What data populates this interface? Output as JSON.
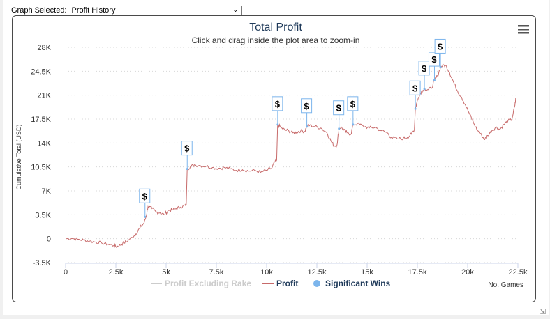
{
  "selector": {
    "label": "Graph Selected:",
    "value": "Profit History"
  },
  "chart_data": {
    "type": "line",
    "title": "Total Profit",
    "subtitle": "Click and drag inside the plot area to zoom-in",
    "xlabel": "No. Games",
    "ylabel": "Cumulative Total (USD)",
    "xlim": [
      0,
      22500
    ],
    "ylim": [
      -3500,
      28000
    ],
    "x_ticks": [
      0,
      2500,
      5000,
      7500,
      10000,
      12500,
      15000,
      17500,
      20000,
      22500
    ],
    "x_tick_labels": [
      "0",
      "2.5k",
      "5k",
      "7.5k",
      "10k",
      "12.5k",
      "15k",
      "17.5k",
      "20k",
      "22.5k"
    ],
    "y_ticks": [
      -3500,
      0,
      3500,
      7000,
      10500,
      14000,
      17500,
      21000,
      24500,
      28000
    ],
    "y_tick_labels": [
      "-3.5K",
      "0",
      "3.5K",
      "7K",
      "10.5K",
      "14K",
      "17.5K",
      "21K",
      "24.5K",
      "28K"
    ],
    "grid": true,
    "legend_position": "bottom-center",
    "legend": [
      {
        "label": "Profit Excluding Rake",
        "color": "#cccccc",
        "marker": "line"
      },
      {
        "label": "Profit",
        "color": "#c76a6a",
        "marker": "line"
      },
      {
        "label": "Significant Wins",
        "color": "#7cb5ec",
        "marker": "circle"
      }
    ],
    "series": [
      {
        "name": "Profit",
        "color": "#c76a6a",
        "points": [
          [
            0,
            0
          ],
          [
            300,
            50
          ],
          [
            600,
            -100
          ],
          [
            900,
            -200
          ],
          [
            1200,
            -350
          ],
          [
            1500,
            -500
          ],
          [
            1800,
            -650
          ],
          [
            2100,
            -800
          ],
          [
            2400,
            -1000
          ],
          [
            2550,
            -1150
          ],
          [
            2700,
            -950
          ],
          [
            2900,
            -600
          ],
          [
            3100,
            -300
          ],
          [
            3300,
            200
          ],
          [
            3500,
            700
          ],
          [
            3700,
            1600
          ],
          [
            3900,
            2300
          ],
          [
            4000,
            3200
          ],
          [
            4100,
            4700
          ],
          [
            4300,
            4400
          ],
          [
            4500,
            3900
          ],
          [
            4700,
            3800
          ],
          [
            4900,
            3500
          ],
          [
            5100,
            4100
          ],
          [
            5300,
            4200
          ],
          [
            5500,
            4400
          ],
          [
            5700,
            4600
          ],
          [
            5950,
            4900
          ],
          [
            6000,
            4900
          ],
          [
            6050,
            10200
          ],
          [
            6200,
            10500
          ],
          [
            6400,
            10800
          ],
          [
            6700,
            10700
          ],
          [
            7000,
            10600
          ],
          [
            7300,
            10400
          ],
          [
            7600,
            10300
          ],
          [
            7900,
            10400
          ],
          [
            8200,
            10200
          ],
          [
            8500,
            10000
          ],
          [
            8800,
            10100
          ],
          [
            9100,
            9900
          ],
          [
            9400,
            10000
          ],
          [
            9700,
            9700
          ],
          [
            10000,
            10000
          ],
          [
            10250,
            10300
          ],
          [
            10400,
            11200
          ],
          [
            10500,
            11500
          ],
          [
            10550,
            16700
          ],
          [
            10700,
            16300
          ],
          [
            10900,
            15900
          ],
          [
            11100,
            15800
          ],
          [
            11300,
            15500
          ],
          [
            11500,
            15600
          ],
          [
            11700,
            15800
          ],
          [
            11900,
            15700
          ],
          [
            12000,
            16400
          ],
          [
            12150,
            16600
          ],
          [
            12400,
            16400
          ],
          [
            12700,
            16200
          ],
          [
            13000,
            15500
          ],
          [
            13200,
            14300
          ],
          [
            13350,
            13600
          ],
          [
            13500,
            13700
          ],
          [
            13600,
            16100
          ],
          [
            13700,
            16300
          ],
          [
            13850,
            15900
          ],
          [
            14000,
            15500
          ],
          [
            14200,
            15300
          ],
          [
            14300,
            16700
          ],
          [
            14500,
            16800
          ],
          [
            14800,
            16500
          ],
          [
            15100,
            16200
          ],
          [
            15400,
            16300
          ],
          [
            15700,
            15800
          ],
          [
            16000,
            15500
          ],
          [
            16200,
            14800
          ],
          [
            16500,
            14600
          ],
          [
            16800,
            14700
          ],
          [
            17000,
            14800
          ],
          [
            17200,
            15300
          ],
          [
            17350,
            16000
          ],
          [
            17400,
            19000
          ],
          [
            17500,
            20300
          ],
          [
            17600,
            20900
          ],
          [
            17700,
            21500
          ],
          [
            17850,
            21900
          ],
          [
            18000,
            21800
          ],
          [
            18200,
            22000
          ],
          [
            18350,
            23200
          ],
          [
            18500,
            23800
          ],
          [
            18650,
            25100
          ],
          [
            18800,
            25400
          ],
          [
            18950,
            25200
          ],
          [
            19100,
            24300
          ],
          [
            19300,
            22900
          ],
          [
            19500,
            21600
          ],
          [
            19700,
            20700
          ],
          [
            19900,
            19500
          ],
          [
            20100,
            18200
          ],
          [
            20300,
            16900
          ],
          [
            20500,
            15800
          ],
          [
            20700,
            15100
          ],
          [
            20850,
            14500
          ],
          [
            21000,
            15100
          ],
          [
            21200,
            15800
          ],
          [
            21400,
            16300
          ],
          [
            21600,
            16000
          ],
          [
            21800,
            16700
          ],
          [
            22000,
            17200
          ],
          [
            22200,
            17500
          ],
          [
            22350,
            19500
          ],
          [
            22400,
            20600
          ]
        ]
      }
    ],
    "significant_wins": [
      {
        "x": 3950,
        "y": 3200,
        "label": "$"
      },
      {
        "x": 6050,
        "y": 10200,
        "label": "$"
      },
      {
        "x": 10550,
        "y": 16700,
        "label": "$"
      },
      {
        "x": 12000,
        "y": 16400,
        "label": "$"
      },
      {
        "x": 13600,
        "y": 16100,
        "label": "$"
      },
      {
        "x": 14300,
        "y": 16700,
        "label": "$"
      },
      {
        "x": 17400,
        "y": 19000,
        "label": "$"
      },
      {
        "x": 17850,
        "y": 21900,
        "label": "$"
      },
      {
        "x": 18350,
        "y": 23200,
        "label": "$"
      },
      {
        "x": 18650,
        "y": 25100,
        "label": "$"
      }
    ]
  }
}
